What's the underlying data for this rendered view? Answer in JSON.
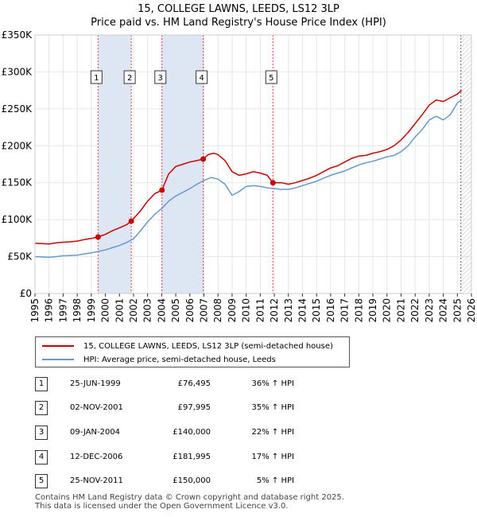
{
  "chart_data": {
    "type": "line",
    "title": "15, COLLEGE LAWNS, LEEDS, LS12 3LP",
    "subtitle": "Price paid vs. HM Land Registry's House Price Index (HPI)",
    "xlabel": "",
    "ylabel": "",
    "xlim": [
      1995,
      2026
    ],
    "ylim": [
      0,
      350000
    ],
    "y_ticks": [
      0,
      50000,
      100000,
      150000,
      200000,
      250000,
      300000,
      350000
    ],
    "y_tick_labels": [
      "£0",
      "£50K",
      "£100K",
      "£150K",
      "£200K",
      "£250K",
      "£300K",
      "£350K"
    ],
    "x_tick_labels": [
      "1995",
      "1996",
      "1997",
      "1998",
      "1999",
      "2000",
      "2001",
      "2002",
      "2003",
      "2004",
      "2005",
      "2006",
      "2007",
      "2008",
      "2009",
      "2010",
      "2011",
      "2012",
      "2013",
      "2014",
      "2015",
      "2016",
      "2017",
      "2018",
      "2019",
      "2020",
      "2021",
      "2022",
      "2023",
      "2024",
      "2025",
      "2026"
    ],
    "grid": true,
    "future_hatch_from": 2025.25,
    "series": [
      {
        "name": "15, COLLEGE LAWNS, LEEDS, LS12 3LP (semi-detached house)",
        "color": "#cc0000",
        "x": [
          1995.0,
          1995.5,
          1996.0,
          1996.5,
          1997.0,
          1997.5,
          1998.0,
          1998.5,
          1999.0,
          1999.48,
          2000.0,
          2000.5,
          2001.0,
          2001.5,
          2001.84,
          2002.5,
          2003.0,
          2003.5,
          2004.02,
          2004.5,
          2005.0,
          2005.5,
          2006.0,
          2006.5,
          2006.95,
          2007.3,
          2007.7,
          2008.0,
          2008.5,
          2009.0,
          2009.5,
          2010.0,
          2010.5,
          2011.0,
          2011.5,
          2011.9,
          2012.5,
          2013.0,
          2013.5,
          2014.0,
          2014.5,
          2015.0,
          2015.5,
          2016.0,
          2016.5,
          2017.0,
          2017.5,
          2018.0,
          2018.5,
          2019.0,
          2019.5,
          2020.0,
          2020.5,
          2021.0,
          2021.5,
          2022.0,
          2022.5,
          2023.0,
          2023.5,
          2024.0,
          2024.5,
          2025.0,
          2025.3
        ],
        "y": [
          68000,
          67500,
          67000,
          68500,
          69500,
          70000,
          71000,
          73000,
          74500,
          76495,
          80000,
          85000,
          89000,
          93000,
          97995,
          112000,
          125000,
          135000,
          140000,
          162000,
          172000,
          175000,
          178000,
          180000,
          181995,
          188000,
          190000,
          188000,
          180000,
          165000,
          160000,
          162000,
          165000,
          163000,
          160000,
          150000,
          150000,
          148000,
          150000,
          153000,
          156000,
          160000,
          165000,
          170000,
          173000,
          178000,
          183000,
          186000,
          187000,
          190000,
          192000,
          195000,
          200000,
          208000,
          218000,
          230000,
          242000,
          255000,
          262000,
          260000,
          265000,
          270000,
          275000
        ]
      },
      {
        "name": "HPI: Average price, semi-detached house, Leeds",
        "color": "#6699cc",
        "x": [
          1995.0,
          1995.5,
          1996.0,
          1996.5,
          1997.0,
          1997.5,
          1998.0,
          1998.5,
          1999.0,
          1999.5,
          2000.0,
          2000.5,
          2001.0,
          2001.5,
          2002.0,
          2002.5,
          2003.0,
          2003.5,
          2004.0,
          2004.5,
          2005.0,
          2005.5,
          2006.0,
          2006.5,
          2007.0,
          2007.5,
          2008.0,
          2008.5,
          2009.0,
          2009.5,
          2010.0,
          2010.5,
          2011.0,
          2011.5,
          2012.0,
          2012.5,
          2013.0,
          2013.5,
          2014.0,
          2014.5,
          2015.0,
          2015.5,
          2016.0,
          2016.5,
          2017.0,
          2017.5,
          2018.0,
          2018.5,
          2019.0,
          2019.5,
          2020.0,
          2020.5,
          2021.0,
          2021.5,
          2022.0,
          2022.5,
          2023.0,
          2023.5,
          2024.0,
          2024.5,
          2025.0,
          2025.3
        ],
        "y": [
          50000,
          49500,
          49000,
          50000,
          51000,
          51500,
          52000,
          53500,
          55000,
          57000,
          59000,
          62000,
          65000,
          69000,
          74000,
          85000,
          97000,
          107000,
          115000,
          125000,
          132000,
          137000,
          142000,
          148000,
          153000,
          157000,
          155000,
          148000,
          133000,
          138000,
          145000,
          146000,
          145000,
          143000,
          142000,
          141000,
          141000,
          143000,
          146000,
          149000,
          152000,
          156000,
          160000,
          163000,
          166000,
          170000,
          174000,
          177000,
          179000,
          182000,
          185000,
          187000,
          192000,
          200000,
          212000,
          222000,
          235000,
          240000,
          235000,
          242000,
          258000,
          262000
        ]
      }
    ],
    "sales": [
      {
        "num": "1",
        "x": 1999.48,
        "price": 76495
      },
      {
        "num": "2",
        "x": 2001.84,
        "price": 97995
      },
      {
        "num": "3",
        "x": 2004.02,
        "price": 140000
      },
      {
        "num": "4",
        "x": 2006.95,
        "price": 181995
      },
      {
        "num": "5",
        "x": 2011.9,
        "price": 150000
      }
    ]
  },
  "legend": {
    "property": "15, COLLEGE LAWNS, LEEDS, LS12 3LP (semi-detached house)",
    "hpi": "HPI: Average price, semi-detached house, Leeds"
  },
  "table": [
    {
      "num": "1",
      "date": "25-JUN-1999",
      "price": "£76,495",
      "hpi": "36% ↑ HPI"
    },
    {
      "num": "2",
      "date": "02-NOV-2001",
      "price": "£97,995",
      "hpi": "35% ↑ HPI"
    },
    {
      "num": "3",
      "date": "09-JAN-2004",
      "price": "£140,000",
      "hpi": "22% ↑ HPI"
    },
    {
      "num": "4",
      "date": "12-DEC-2006",
      "price": "£181,995",
      "hpi": "17% ↑ HPI"
    },
    {
      "num": "5",
      "date": "25-NOV-2011",
      "price": "£150,000",
      "hpi": "5% ↑ HPI"
    }
  ],
  "footer": {
    "line1": "Contains HM Land Registry data © Crown copyright and database right 2025.",
    "line2": "This data is licensed under the Open Government Licence v3.0."
  },
  "colors": {
    "property": "#cc0000",
    "hpi": "#6699cc",
    "band": "#dde6f5",
    "grid": "#e6e6e6"
  }
}
